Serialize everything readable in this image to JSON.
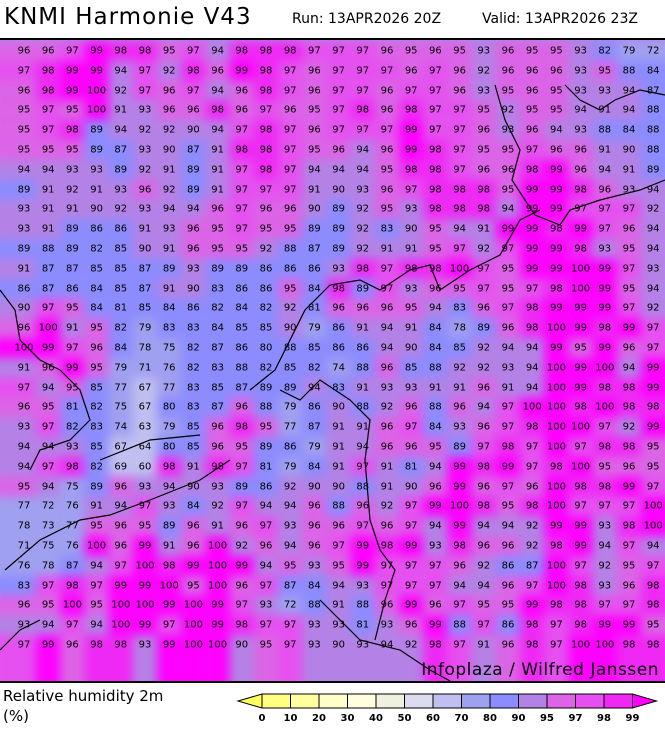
{
  "header": {
    "title": "KNMI Harmonie V43",
    "run": "Run: 13APR2026 20Z",
    "valid": "Valid: 13APR2026 23Z"
  },
  "parameter": {
    "name": "Relative humidity 2m",
    "unit": "(%)"
  },
  "credit": "Infoplaza / Wilfred Janssen",
  "legend": {
    "ticks": [
      "0",
      "10",
      "20",
      "30",
      "40",
      "50",
      "60",
      "70",
      "80",
      "90",
      "95",
      "97",
      "98",
      "99"
    ],
    "colors": [
      "#ffff80",
      "#ffffa0",
      "#ffffc8",
      "#ffffe0",
      "#f0f0e0",
      "#dcdcf0",
      "#c0c0f0",
      "#a0a0f0",
      "#8c8cff",
      "#b482e6",
      "#dc64e6",
      "#e650f0",
      "#f028f5"
    ],
    "under_color": "#ffff60",
    "over_color": "#ff00ff"
  },
  "grid_values": [
    [
      96,
      96,
      97,
      99,
      98,
      98,
      95,
      97,
      94,
      98,
      98,
      98,
      97,
      97,
      97,
      96,
      95,
      96,
      95,
      93,
      96,
      95,
      95,
      93,
      82,
      79,
      72
    ],
    [
      97,
      98,
      99,
      99,
      94,
      97,
      92,
      98,
      96,
      99,
      98,
      97,
      96,
      97,
      97,
      97,
      96,
      97,
      96,
      92,
      96,
      96,
      96,
      93,
      95,
      88,
      84
    ],
    [
      96,
      98,
      99,
      100,
      92,
      97,
      96,
      97,
      94,
      96,
      98,
      97,
      96,
      97,
      97,
      96,
      97,
      97,
      96,
      93,
      95,
      96,
      95,
      93,
      93,
      94,
      87
    ],
    [
      95,
      97,
      95,
      100,
      91,
      93,
      96,
      96,
      98,
      96,
      97,
      96,
      95,
      97,
      98,
      96,
      98,
      97,
      97,
      95,
      92,
      95,
      95,
      94,
      91,
      94,
      88
    ],
    [
      95,
      97,
      98,
      89,
      94,
      92,
      92,
      90,
      94,
      97,
      98,
      97,
      96,
      97,
      97,
      97,
      99,
      97,
      97,
      96,
      93,
      96,
      94,
      93,
      88,
      84,
      88
    ],
    [
      95,
      95,
      95,
      89,
      87,
      93,
      90,
      87,
      91,
      98,
      98,
      97,
      95,
      96,
      94,
      96,
      99,
      98,
      97,
      95,
      95,
      97,
      96,
      96,
      91,
      90,
      88
    ],
    [
      94,
      94,
      93,
      93,
      89,
      92,
      91,
      89,
      91,
      97,
      98,
      97,
      94,
      94,
      94,
      95,
      98,
      98,
      97,
      96,
      96,
      98,
      99,
      96,
      94,
      91,
      89
    ],
    [
      89,
      91,
      92,
      91,
      93,
      96,
      92,
      89,
      91,
      97,
      97,
      97,
      91,
      90,
      93,
      96,
      97,
      98,
      98,
      98,
      95,
      99,
      99,
      98,
      96,
      93,
      94
    ],
    [
      93,
      91,
      91,
      90,
      92,
      93,
      94,
      94,
      96,
      97,
      96,
      96,
      90,
      89,
      92,
      95,
      93,
      98,
      98,
      98,
      94,
      99,
      99,
      97,
      97,
      97,
      92
    ],
    [
      93,
      91,
      89,
      86,
      86,
      91,
      93,
      96,
      95,
      97,
      95,
      95,
      89,
      89,
      92,
      83,
      90,
      95,
      94,
      91,
      99,
      99,
      98,
      99,
      97,
      96,
      94
    ],
    [
      89,
      88,
      89,
      82,
      85,
      90,
      91,
      96,
      95,
      95,
      92,
      88,
      87,
      89,
      92,
      91,
      91,
      95,
      97,
      92,
      97,
      99,
      99,
      98,
      93,
      95,
      94
    ],
    [
      91,
      87,
      87,
      85,
      85,
      87,
      89,
      93,
      89,
      89,
      86,
      86,
      86,
      93,
      98,
      97,
      98,
      98,
      100,
      97,
      95,
      99,
      99,
      100,
      99,
      97,
      93
    ],
    [
      86,
      87,
      86,
      84,
      85,
      87,
      91,
      90,
      83,
      86,
      86,
      95,
      84,
      98,
      89,
      97,
      93,
      96,
      95,
      97,
      95,
      97,
      98,
      100,
      99,
      95,
      94
    ],
    [
      90,
      97,
      95,
      84,
      81,
      85,
      84,
      86,
      82,
      84,
      82,
      92,
      81,
      96,
      96,
      96,
      95,
      94,
      83,
      96,
      97,
      98,
      99,
      99,
      99,
      97,
      92
    ],
    [
      96,
      100,
      91,
      95,
      82,
      79,
      83,
      83,
      84,
      85,
      85,
      90,
      79,
      86,
      91,
      94,
      91,
      84,
      78,
      89,
      96,
      98,
      100,
      99,
      98,
      99,
      97
    ],
    [
      100,
      99,
      97,
      96,
      84,
      78,
      75,
      82,
      87,
      86,
      80,
      88,
      85,
      86,
      86,
      94,
      90,
      84,
      85,
      92,
      94,
      94,
      99,
      95,
      99,
      96,
      97
    ],
    [
      91,
      96,
      99,
      95,
      79,
      71,
      76,
      82,
      83,
      88,
      82,
      85,
      82,
      74,
      88,
      96,
      85,
      88,
      92,
      92,
      93,
      94,
      100,
      99,
      100,
      94,
      99
    ],
    [
      97,
      94,
      95,
      85,
      77,
      67,
      77,
      83,
      85,
      87,
      89,
      89,
      94,
      83,
      91,
      93,
      93,
      91,
      91,
      96,
      91,
      94,
      100,
      99,
      98,
      98,
      99
    ],
    [
      96,
      95,
      81,
      82,
      75,
      67,
      80,
      83,
      87,
      96,
      88,
      79,
      86,
      90,
      88,
      92,
      96,
      88,
      96,
      94,
      97,
      100,
      100,
      98,
      100,
      98,
      98
    ],
    [
      93,
      97,
      82,
      83,
      74,
      63,
      79,
      85,
      96,
      98,
      95,
      77,
      87,
      91,
      91,
      96,
      97,
      84,
      93,
      96,
      97,
      98,
      100,
      100,
      97,
      92,
      99
    ],
    [
      94,
      94,
      93,
      85,
      67,
      64,
      80,
      85,
      96,
      95,
      89,
      86,
      79,
      91,
      94,
      96,
      96,
      95,
      89,
      97,
      98,
      97,
      100,
      97,
      98,
      98,
      95
    ],
    [
      94,
      97,
      98,
      82,
      69,
      60,
      98,
      91,
      98,
      97,
      81,
      79,
      84,
      91,
      97,
      91,
      81,
      94,
      99,
      98,
      99,
      97,
      98,
      100,
      95,
      96,
      95
    ],
    [
      95,
      94,
      75,
      89,
      96,
      93,
      94,
      90,
      93,
      89,
      86,
      92,
      90,
      90,
      88,
      91,
      90,
      96,
      99,
      96,
      97,
      96,
      100,
      98,
      98,
      99,
      97
    ],
    [
      77,
      72,
      76,
      91,
      94,
      97,
      93,
      84,
      92,
      97,
      94,
      94,
      96,
      88,
      96,
      92,
      97,
      99,
      100,
      98,
      95,
      98,
      100,
      97,
      97,
      97,
      100
    ],
    [
      78,
      73,
      77,
      95,
      96,
      95,
      89,
      96,
      91,
      96,
      97,
      93,
      96,
      96,
      97,
      96,
      97,
      94,
      99,
      94,
      94,
      92,
      99,
      99,
      93,
      98,
      100
    ],
    [
      71,
      75,
      76,
      100,
      96,
      99,
      91,
      96,
      100,
      92,
      96,
      94,
      96,
      97,
      99,
      98,
      99,
      93,
      98,
      96,
      96,
      92,
      98,
      99,
      94,
      97,
      94
    ],
    [
      76,
      78,
      87,
      94,
      97,
      100,
      98,
      99,
      100,
      99,
      94,
      95,
      93,
      95,
      99,
      97,
      97,
      97,
      96,
      92,
      86,
      87,
      100,
      97,
      92,
      95,
      97
    ],
    [
      83,
      97,
      98,
      97,
      99,
      99,
      100,
      95,
      100,
      96,
      97,
      87,
      84,
      94,
      93,
      97,
      97,
      97,
      94,
      94,
      96,
      97,
      100,
      98,
      93,
      96,
      98
    ],
    [
      96,
      95,
      100,
      95,
      100,
      100,
      99,
      100,
      99,
      97,
      93,
      72,
      88,
      91,
      88,
      96,
      99,
      96,
      97,
      95,
      95,
      99,
      98,
      98,
      97,
      97,
      98
    ],
    [
      93,
      94,
      97,
      94,
      100,
      99,
      97,
      100,
      99,
      98,
      97,
      97,
      93,
      93,
      81,
      93,
      96,
      99,
      88,
      97,
      86,
      98,
      97,
      98,
      99,
      99,
      95
    ],
    [
      97,
      99,
      96,
      98,
      98,
      93,
      99,
      100,
      100,
      90,
      95,
      97,
      93,
      90,
      93,
      94,
      92,
      98,
      97,
      91,
      96,
      98,
      97,
      100,
      100,
      98,
      98
    ]
  ]
}
